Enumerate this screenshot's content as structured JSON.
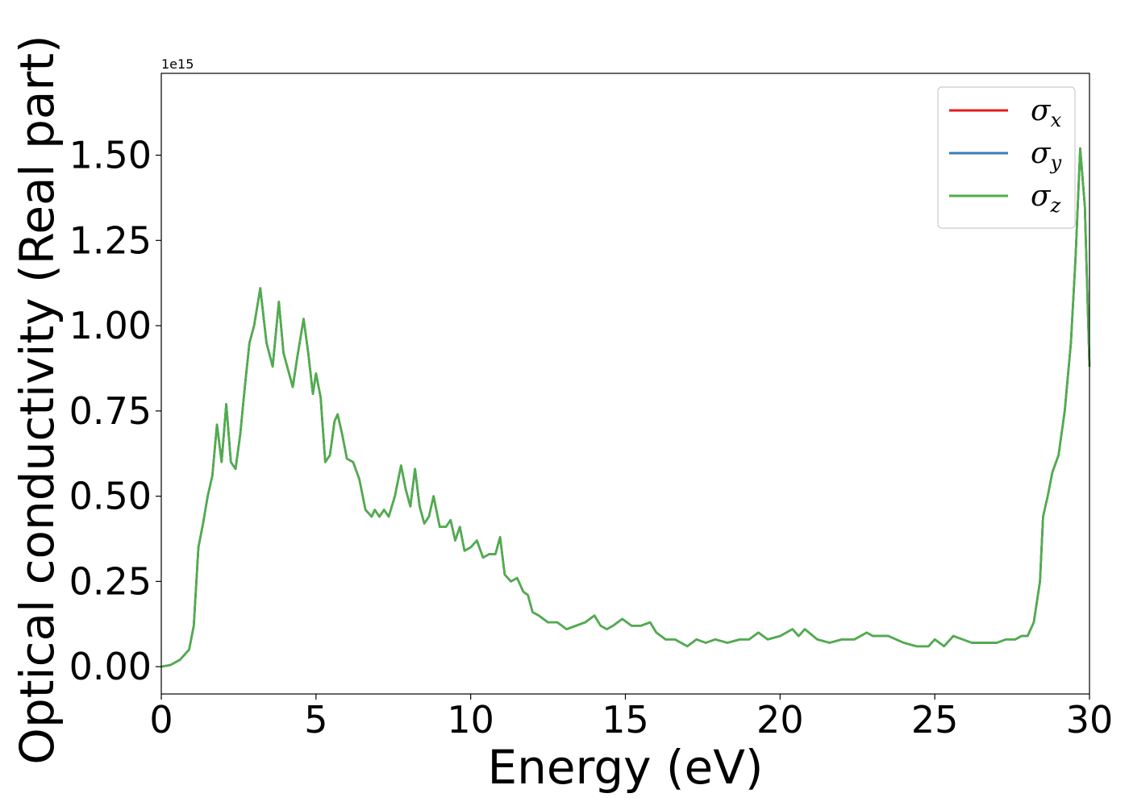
{
  "chart_data": {
    "type": "line",
    "title": "",
    "xlabel": "Energy (eV)",
    "ylabel": "Optical conductivity (Real part)",
    "y_offset_label": "1e15",
    "xlim": [
      0,
      30
    ],
    "ylim": [
      -0.08,
      1.74
    ],
    "xticks": [
      0,
      5,
      10,
      15,
      20,
      25,
      30
    ],
    "xtick_labels": [
      "0",
      "5",
      "10",
      "15",
      "20",
      "25",
      "30"
    ],
    "yticks": [
      0.0,
      0.25,
      0.5,
      0.75,
      1.0,
      1.25,
      1.5
    ],
    "ytick_labels": [
      "0.00",
      "0.25",
      "0.50",
      "0.75",
      "1.00",
      "1.25",
      "1.50"
    ],
    "grid": false,
    "legend_position": "top-right",
    "x": [
      0,
      0.3,
      0.6,
      0.9,
      1.05,
      1.2,
      1.35,
      1.5,
      1.65,
      1.8,
      1.95,
      2.1,
      2.25,
      2.4,
      2.55,
      2.7,
      2.85,
      3.0,
      3.2,
      3.4,
      3.6,
      3.8,
      3.95,
      4.1,
      4.25,
      4.4,
      4.6,
      4.75,
      4.9,
      5.0,
      5.15,
      5.3,
      5.45,
      5.6,
      5.7,
      5.85,
      6.0,
      6.2,
      6.4,
      6.6,
      6.8,
      6.9,
      7.05,
      7.2,
      7.35,
      7.55,
      7.75,
      7.9,
      8.05,
      8.2,
      8.35,
      8.5,
      8.65,
      8.8,
      9.0,
      9.2,
      9.35,
      9.5,
      9.65,
      9.8,
      10.0,
      10.2,
      10.4,
      10.6,
      10.8,
      10.95,
      11.1,
      11.3,
      11.5,
      11.7,
      11.85,
      12.0,
      12.2,
      12.5,
      12.8,
      13.1,
      13.4,
      13.7,
      14.0,
      14.2,
      14.4,
      14.6,
      14.9,
      15.2,
      15.5,
      15.8,
      16.0,
      16.3,
      16.6,
      17.0,
      17.3,
      17.6,
      17.9,
      18.3,
      18.7,
      19.0,
      19.3,
      19.6,
      20.0,
      20.2,
      20.4,
      20.6,
      20.8,
      21.2,
      21.6,
      22.0,
      22.4,
      22.6,
      22.8,
      23.0,
      23.5,
      24.0,
      24.4,
      24.8,
      25.0,
      25.3,
      25.6,
      25.9,
      26.2,
      26.6,
      27.0,
      27.3,
      27.6,
      27.8,
      28.0,
      28.2,
      28.4,
      28.5,
      28.65,
      28.8,
      29.0,
      29.2,
      29.4,
      29.55,
      29.7,
      29.85,
      30.0
    ],
    "series": [
      {
        "name": "σx",
        "color": "#e41a1c",
        "values": [
          0.0,
          0.005,
          0.02,
          0.05,
          0.12,
          0.35,
          0.42,
          0.5,
          0.56,
          0.71,
          0.6,
          0.77,
          0.6,
          0.58,
          0.68,
          0.82,
          0.95,
          1.0,
          1.11,
          0.95,
          0.88,
          1.07,
          0.92,
          0.87,
          0.82,
          0.91,
          1.02,
          0.92,
          0.8,
          0.86,
          0.79,
          0.6,
          0.62,
          0.72,
          0.74,
          0.68,
          0.61,
          0.6,
          0.55,
          0.46,
          0.44,
          0.46,
          0.44,
          0.46,
          0.44,
          0.5,
          0.59,
          0.52,
          0.47,
          0.58,
          0.47,
          0.42,
          0.44,
          0.5,
          0.41,
          0.41,
          0.43,
          0.37,
          0.41,
          0.34,
          0.35,
          0.37,
          0.32,
          0.33,
          0.33,
          0.38,
          0.27,
          0.25,
          0.26,
          0.22,
          0.21,
          0.16,
          0.15,
          0.13,
          0.13,
          0.11,
          0.12,
          0.13,
          0.15,
          0.12,
          0.11,
          0.12,
          0.14,
          0.12,
          0.12,
          0.13,
          0.1,
          0.08,
          0.08,
          0.06,
          0.08,
          0.07,
          0.08,
          0.07,
          0.08,
          0.08,
          0.1,
          0.08,
          0.09,
          0.1,
          0.11,
          0.09,
          0.11,
          0.08,
          0.07,
          0.08,
          0.08,
          0.09,
          0.1,
          0.09,
          0.09,
          0.07,
          0.06,
          0.06,
          0.08,
          0.06,
          0.09,
          0.08,
          0.07,
          0.07,
          0.07,
          0.08,
          0.08,
          0.09,
          0.09,
          0.13,
          0.25,
          0.44,
          0.5,
          0.57,
          0.62,
          0.75,
          0.95,
          1.2,
          1.52,
          1.35,
          0.88
        ]
      },
      {
        "name": "σy",
        "color": "#377eb8",
        "values": [
          0.0,
          0.005,
          0.02,
          0.05,
          0.12,
          0.35,
          0.42,
          0.5,
          0.56,
          0.71,
          0.6,
          0.77,
          0.6,
          0.58,
          0.68,
          0.82,
          0.95,
          1.0,
          1.11,
          0.95,
          0.88,
          1.07,
          0.92,
          0.87,
          0.82,
          0.91,
          1.02,
          0.92,
          0.8,
          0.86,
          0.79,
          0.6,
          0.62,
          0.72,
          0.74,
          0.68,
          0.61,
          0.6,
          0.55,
          0.46,
          0.44,
          0.46,
          0.44,
          0.46,
          0.44,
          0.5,
          0.59,
          0.52,
          0.47,
          0.58,
          0.47,
          0.42,
          0.44,
          0.5,
          0.41,
          0.41,
          0.43,
          0.37,
          0.41,
          0.34,
          0.35,
          0.37,
          0.32,
          0.33,
          0.33,
          0.38,
          0.27,
          0.25,
          0.26,
          0.22,
          0.21,
          0.16,
          0.15,
          0.13,
          0.13,
          0.11,
          0.12,
          0.13,
          0.15,
          0.12,
          0.11,
          0.12,
          0.14,
          0.12,
          0.12,
          0.13,
          0.1,
          0.08,
          0.08,
          0.06,
          0.08,
          0.07,
          0.08,
          0.07,
          0.08,
          0.08,
          0.1,
          0.08,
          0.09,
          0.1,
          0.11,
          0.09,
          0.11,
          0.08,
          0.07,
          0.08,
          0.08,
          0.09,
          0.1,
          0.09,
          0.09,
          0.07,
          0.06,
          0.06,
          0.08,
          0.06,
          0.09,
          0.08,
          0.07,
          0.07,
          0.07,
          0.08,
          0.08,
          0.09,
          0.09,
          0.13,
          0.25,
          0.44,
          0.5,
          0.57,
          0.62,
          0.75,
          0.95,
          1.2,
          1.52,
          1.35,
          0.88
        ]
      },
      {
        "name": "σz",
        "color": "#4daf4a",
        "values": [
          0.0,
          0.005,
          0.02,
          0.05,
          0.12,
          0.35,
          0.42,
          0.5,
          0.56,
          0.71,
          0.6,
          0.77,
          0.6,
          0.58,
          0.68,
          0.82,
          0.95,
          1.0,
          1.11,
          0.95,
          0.88,
          1.07,
          0.92,
          0.87,
          0.82,
          0.91,
          1.02,
          0.92,
          0.8,
          0.86,
          0.79,
          0.6,
          0.62,
          0.72,
          0.74,
          0.68,
          0.61,
          0.6,
          0.55,
          0.46,
          0.44,
          0.46,
          0.44,
          0.46,
          0.44,
          0.5,
          0.59,
          0.52,
          0.47,
          0.58,
          0.47,
          0.42,
          0.44,
          0.5,
          0.41,
          0.41,
          0.43,
          0.37,
          0.41,
          0.34,
          0.35,
          0.37,
          0.32,
          0.33,
          0.33,
          0.38,
          0.27,
          0.25,
          0.26,
          0.22,
          0.21,
          0.16,
          0.15,
          0.13,
          0.13,
          0.11,
          0.12,
          0.13,
          0.15,
          0.12,
          0.11,
          0.12,
          0.14,
          0.12,
          0.12,
          0.13,
          0.1,
          0.08,
          0.08,
          0.06,
          0.08,
          0.07,
          0.08,
          0.07,
          0.08,
          0.08,
          0.1,
          0.08,
          0.09,
          0.1,
          0.11,
          0.09,
          0.11,
          0.08,
          0.07,
          0.08,
          0.08,
          0.09,
          0.1,
          0.09,
          0.09,
          0.07,
          0.06,
          0.06,
          0.08,
          0.06,
          0.09,
          0.08,
          0.07,
          0.07,
          0.07,
          0.08,
          0.08,
          0.09,
          0.09,
          0.13,
          0.25,
          0.44,
          0.5,
          0.57,
          0.62,
          0.75,
          0.95,
          1.2,
          1.52,
          1.35,
          0.88
        ]
      }
    ],
    "legend": [
      {
        "symbol": "σ",
        "sub": "x",
        "color": "#e41a1c"
      },
      {
        "symbol": "σ",
        "sub": "y",
        "color": "#377eb8"
      },
      {
        "symbol": "σ",
        "sub": "z",
        "color": "#4daf4a"
      }
    ]
  }
}
